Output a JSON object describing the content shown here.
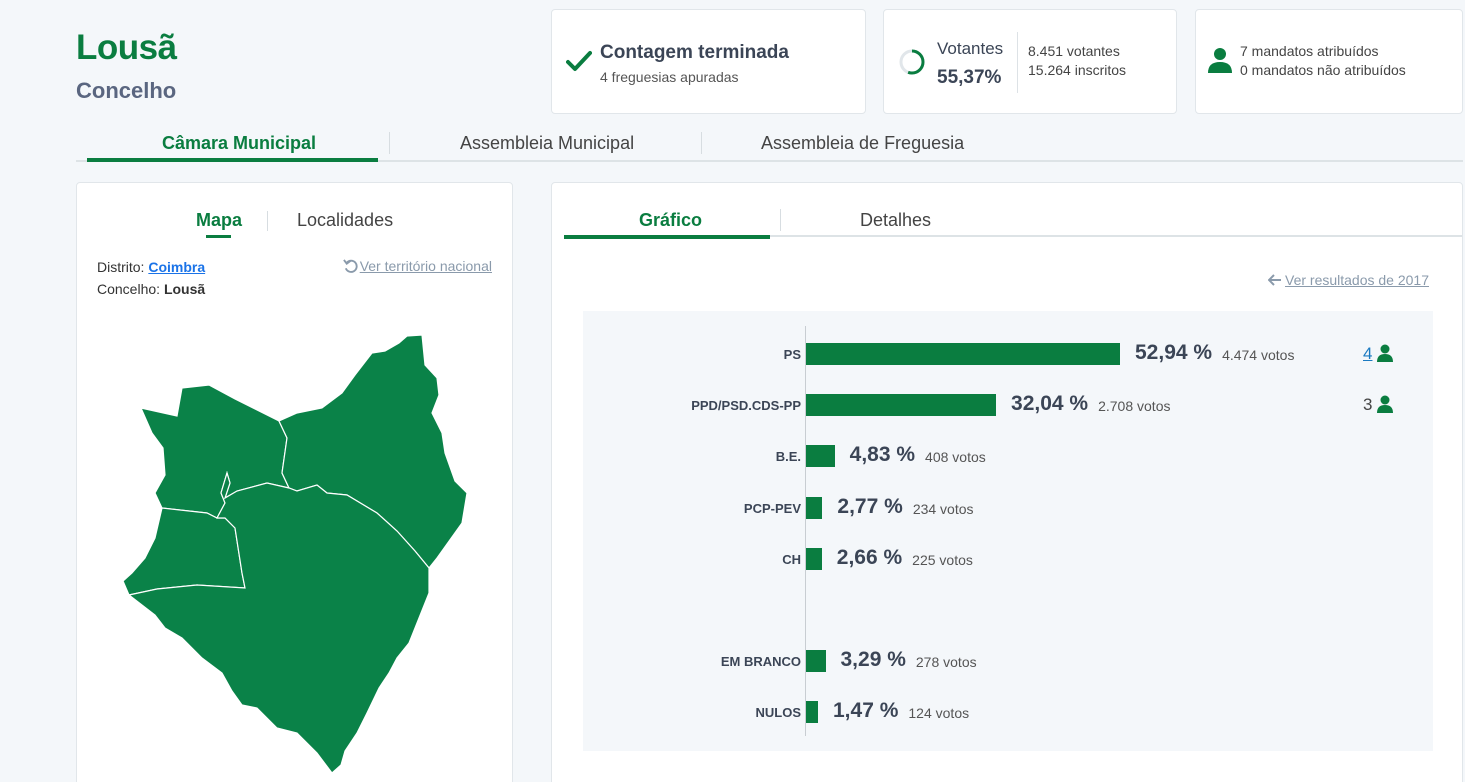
{
  "header": {
    "title": "Lousã",
    "subtitle": "Concelho"
  },
  "status_cards": {
    "count": {
      "title": "Contagem terminada",
      "sub": "4 freguesias apuradas",
      "icon": "check-icon"
    },
    "turnout": {
      "label": "Votantes",
      "value": "55,37%",
      "voters": "8.451 votantes",
      "registered": "15.264 inscritos",
      "fraction": 0.5537,
      "icon": "ring-progress-icon"
    },
    "mandates": {
      "assigned": "7 mandatos atribuídos",
      "unassigned": "0 mandatos não atribuídos",
      "icon": "person-icon"
    }
  },
  "main_tabs": [
    "Câmara Municipal",
    "Assembleia Municipal",
    "Assembleia de Freguesia"
  ],
  "left_panel": {
    "tabs": [
      "Mapa",
      "Localidades"
    ],
    "district_label": "Distrito:",
    "district_value": "Coimbra",
    "county_label": "Concelho:",
    "county_value": "Lousã",
    "national_link": "Ver território nacional"
  },
  "right_panel": {
    "tabs": [
      "Gráfico",
      "Detalhes"
    ],
    "previous_link": "Ver resultados de 2017"
  },
  "colors": {
    "accent": "#0a7d40",
    "link": "#1a73e8",
    "muted": "#8a9aab"
  },
  "chart_data": {
    "type": "bar",
    "orientation": "horizontal",
    "categories": [
      "PS",
      "PPD/PSD.CDS-PP",
      "B.E.",
      "PCP-PEV",
      "CH",
      "EM BRANCO",
      "NULOS"
    ],
    "values": [
      52.94,
      32.04,
      4.83,
      2.77,
      2.66,
      3.29,
      1.47
    ],
    "pct_labels": [
      "52,94 %",
      "32,04 %",
      "4,83 %",
      "2,77 %",
      "2,66 %",
      "3,29 %",
      "1,47 %"
    ],
    "vote_labels": [
      "4.474 votos",
      "2.708 votos",
      "408 votos",
      "234 votos",
      "225 votos",
      "278 votos",
      "124 votos"
    ],
    "mandates": [
      "4",
      "3",
      "",
      "",
      "",
      "",
      ""
    ]
  }
}
